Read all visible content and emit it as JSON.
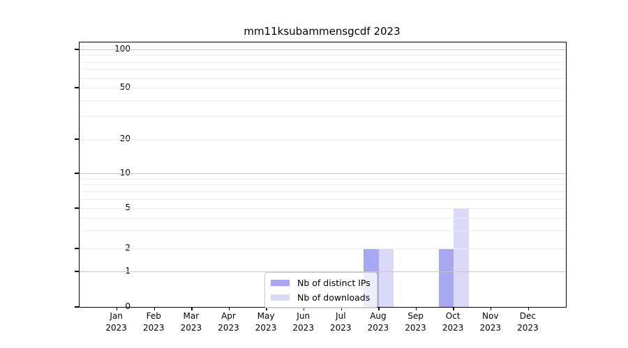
{
  "chart_data": {
    "type": "bar",
    "title": "mm11ksubammensgcdf 2023",
    "categories": [
      "Jan",
      "Feb",
      "Mar",
      "Apr",
      "May",
      "Jun",
      "Jul",
      "Aug",
      "Sep",
      "Oct",
      "Nov",
      "Dec"
    ],
    "category_year": "2023",
    "series": [
      {
        "name": "Nb of distinct IPs",
        "color": "#a7a7f2",
        "values": [
          0,
          0,
          0,
          0,
          0,
          0,
          0,
          2,
          0,
          2,
          0,
          0
        ]
      },
      {
        "name": "Nb of downloads",
        "color": "#dadaf8",
        "values": [
          0,
          0,
          0,
          0,
          0,
          0,
          0,
          2,
          0,
          5,
          0,
          0
        ]
      }
    ],
    "yaxis": {
      "scale": "log-like",
      "tick_labels": [
        0,
        1,
        2,
        5,
        10,
        20,
        50,
        100
      ],
      "major_grid_values": [
        1,
        10,
        100
      ],
      "minor_grid_values": [
        2,
        3,
        4,
        5,
        6,
        7,
        8,
        9,
        20,
        30,
        40,
        50,
        60,
        70,
        80,
        90
      ]
    },
    "legend_position": "lower-center",
    "grid": true,
    "colors": {
      "major_grid": "#c8c8c8",
      "minor_grid": "#ececec",
      "spine": "#000000",
      "text": "#000000"
    }
  }
}
